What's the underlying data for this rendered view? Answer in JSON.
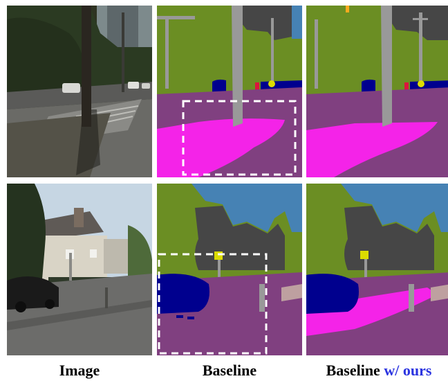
{
  "figure": {
    "columns": [
      {
        "label": "Image"
      },
      {
        "label": "Baseline"
      },
      {
        "label_main": "Baseline",
        "label_accent": "w/ ours",
        "accent_color": "#2b34e0"
      }
    ],
    "rows": [
      {
        "scene": "street with tree trunk and crosswalk",
        "highlight_box_in_baseline": true
      },
      {
        "scene": "residential street with house and parked car",
        "highlight_box_in_baseline": true
      }
    ],
    "segmentation_palette": {
      "vegetation": "#6b8e23",
      "road": "#804080",
      "sidewalk": "#f423e8",
      "building": "#464646",
      "sky": "#4682b4",
      "pole": "#999999",
      "car": "#00008e",
      "traffic_sign": "#dcdc00",
      "traffic_light": "#faaa1e",
      "person": "#dc143c",
      "wall": "#bea0a0"
    },
    "highlight_box_color": "#ffffff"
  }
}
